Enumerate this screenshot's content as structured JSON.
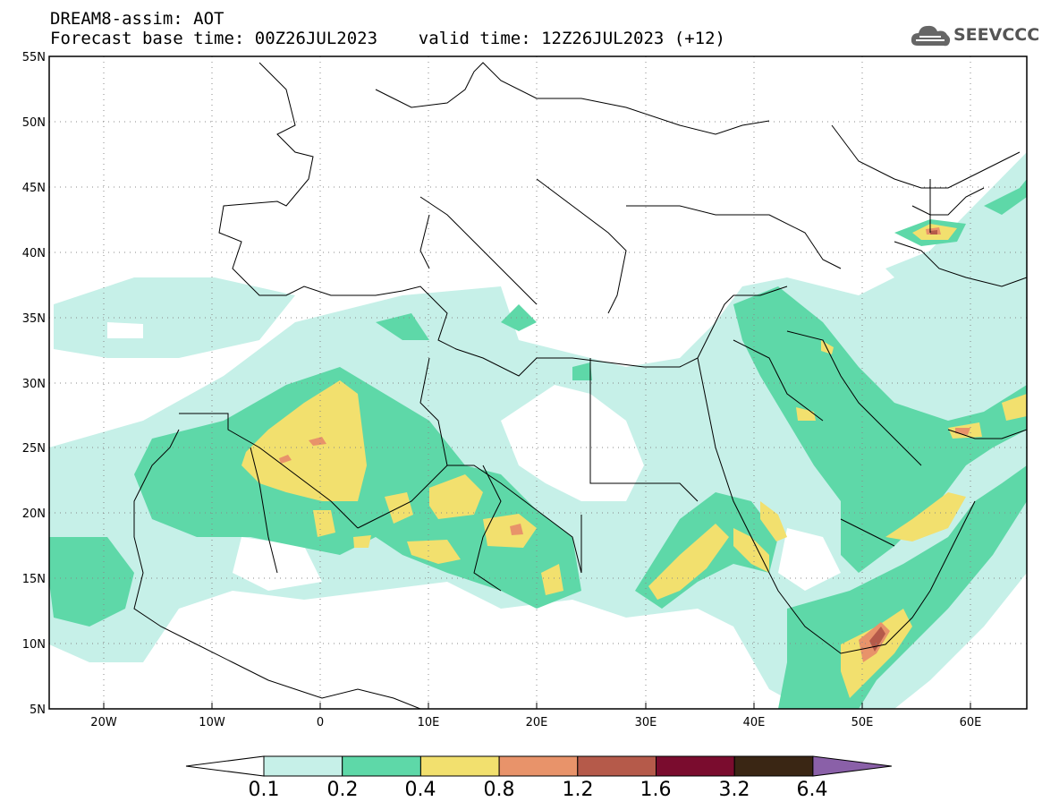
{
  "header": {
    "title_line1": "DREAM8-assim: AOT",
    "title_line2": "Forecast base time: 00Z26JUL2023    valid time: 12Z26JUL2023 (+12)"
  },
  "logo": {
    "text": "SEEVCCC",
    "icon": "cloud-icon"
  },
  "map": {
    "lon_range": [
      -25,
      65
    ],
    "lat_range": [
      5,
      55
    ],
    "lon_ticks": [
      "20W",
      "10W",
      "0",
      "10E",
      "20E",
      "30E",
      "40E",
      "50E",
      "60E"
    ],
    "lat_ticks": [
      "55N",
      "50N",
      "45N",
      "40N",
      "35N",
      "30N",
      "25N",
      "20N",
      "15N",
      "10N",
      "5N"
    ],
    "grid": "dotted"
  },
  "colorbar": {
    "levels": [
      "0.1",
      "0.2",
      "0.4",
      "0.8",
      "1.2",
      "1.6",
      "3.2",
      "6.4"
    ],
    "colors": [
      "#ffffff",
      "#c6f0e8",
      "#5ed8a8",
      "#f2e06e",
      "#e8936a",
      "#b55a4a",
      "#7a0c2e",
      "#3a2614",
      "#8a60a8"
    ]
  }
}
